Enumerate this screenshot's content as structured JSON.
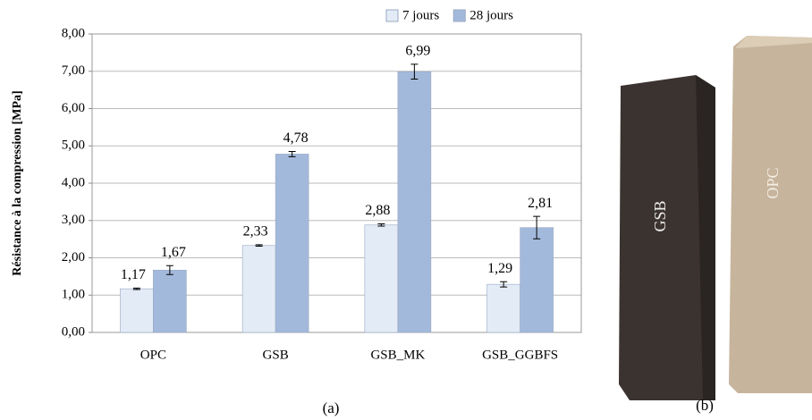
{
  "chart_data": {
    "type": "bar",
    "y_label": "Résistance à la compression [MPa]",
    "categories": [
      "OPC",
      "GSB",
      "GSB_MK",
      "GSB_GGBFS"
    ],
    "series": [
      {
        "name": "7 jours",
        "color": "#e3ebf7",
        "values": [
          1.17,
          2.33,
          2.88,
          1.29
        ],
        "value_labels": [
          "1,17",
          "2,33",
          "2,88",
          "1,29"
        ],
        "errors": [
          0.02,
          0.02,
          0.03,
          0.07
        ]
      },
      {
        "name": "28 jours",
        "color": "#a3b9dc",
        "values": [
          1.67,
          4.78,
          6.99,
          2.81
        ],
        "value_labels": [
          "1,67",
          "4,78",
          "6,99",
          "2,81"
        ],
        "errors": [
          0.12,
          0.07,
          0.2,
          0.3
        ]
      }
    ],
    "ylim": [
      0,
      8
    ],
    "yticks": [
      {
        "value": 0,
        "label": "0,00"
      },
      {
        "value": 1,
        "label": "1,00"
      },
      {
        "value": 2,
        "label": "2,00"
      },
      {
        "value": 3,
        "label": "3,00"
      },
      {
        "value": 4,
        "label": "4,00"
      },
      {
        "value": 5,
        "label": "5,00"
      },
      {
        "value": 6,
        "label": "6,00"
      },
      {
        "value": 7,
        "label": "7,00"
      },
      {
        "value": 8,
        "label": "8,00"
      }
    ],
    "grid": true,
    "legend": "top"
  },
  "captions": [
    "(a)",
    "(b)"
  ],
  "photo_labels": [
    "GSB",
    "OPC"
  ]
}
